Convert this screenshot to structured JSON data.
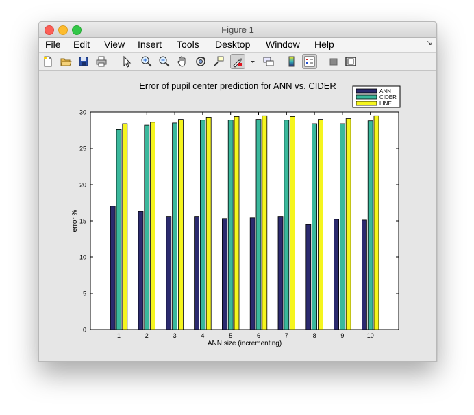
{
  "window": {
    "title": "Figure 1"
  },
  "menu": [
    "File",
    "Edit",
    "View",
    "Insert",
    "Tools",
    "Desktop",
    "Window",
    "Help"
  ],
  "toolbar": {
    "icons": [
      "new-figure-icon",
      "open-file-icon",
      "save-icon",
      "print-icon",
      "pointer-icon",
      "zoom-in-icon",
      "zoom-out-icon",
      "pan-hand-icon",
      "rotate-3d-icon",
      "data-cursor-icon",
      "brush-icon",
      "link-plot-icon",
      "colorbar-icon",
      "legend-icon",
      "hide-plot-tools-icon",
      "show-plot-tools-icon"
    ]
  },
  "colors": {
    "ANN": "#2b2a6e",
    "CIDER": "#3ab89c",
    "LINE": "#f5f51e"
  },
  "chart_data": {
    "type": "bar",
    "title": "Error of pupil center prediction for ANN vs. CIDER",
    "xlabel": "ANN size (incrementing)",
    "ylabel": "error %",
    "categories": [
      "1",
      "2",
      "3",
      "4",
      "5",
      "6",
      "7",
      "8",
      "9",
      "10"
    ],
    "ylim": [
      0,
      30
    ],
    "yticks": [
      "0",
      "5",
      "10",
      "15",
      "20",
      "25",
      "30"
    ],
    "legend_position": "top-right",
    "grid": false,
    "series": [
      {
        "name": "ANN",
        "values": [
          17.0,
          16.3,
          15.6,
          15.6,
          15.3,
          15.4,
          15.6,
          14.5,
          15.2,
          15.1
        ]
      },
      {
        "name": "CIDER",
        "values": [
          27.6,
          28.2,
          28.5,
          28.9,
          28.9,
          29.0,
          28.9,
          28.4,
          28.4,
          28.8
        ]
      },
      {
        "name": "LINE",
        "values": [
          28.4,
          28.6,
          29.0,
          29.3,
          29.4,
          29.5,
          29.4,
          29.0,
          29.1,
          29.5
        ]
      }
    ]
  }
}
